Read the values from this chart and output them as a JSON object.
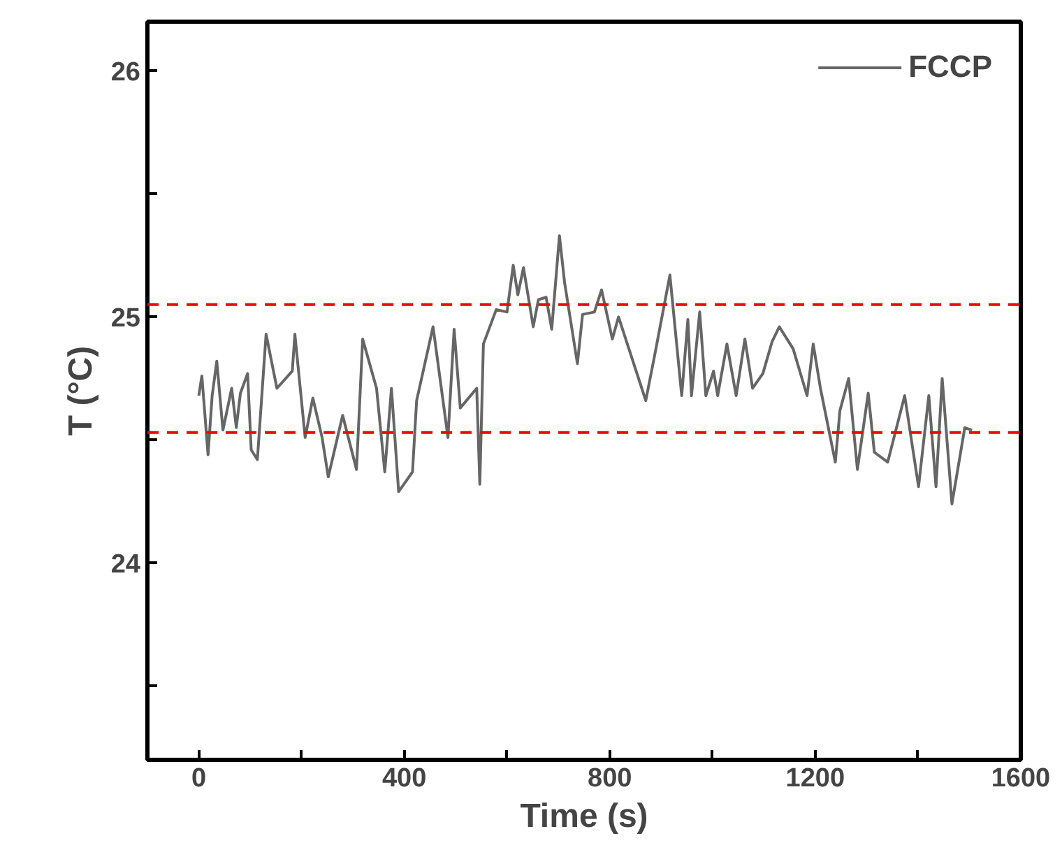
{
  "chart_data": {
    "type": "line",
    "xlabel": "Time (s)",
    "ylabel": "T (°C)",
    "xlim": [
      -100,
      1600
    ],
    "ylim": [
      23.2,
      26.2
    ],
    "xticks": [
      0,
      {
        "value": 200,
        "label": null
      },
      400,
      {
        "value": 600,
        "label": null
      },
      800,
      {
        "value": 1000,
        "label": null
      },
      1200,
      {
        "value": 1400,
        "label": null
      },
      1600
    ],
    "yticks": [
      {
        "value": 23.5,
        "label": null
      },
      24,
      {
        "value": 24.5,
        "label": null
      },
      25,
      {
        "value": 25.5,
        "label": null
      },
      26
    ],
    "grid": false,
    "legend": "top right",
    "ref_lines": [
      {
        "axis": "y",
        "value": 25.05,
        "color": "#ff0000",
        "line_style": "dashed"
      },
      {
        "axis": "y",
        "value": 24.53,
        "color": "#ff0000",
        "line_style": "dashed"
      }
    ],
    "series": [
      {
        "name": "FCCP",
        "color": "#666666",
        "x": [
          0,
          6,
          18,
          26,
          35,
          47,
          64,
          73,
          81,
          95,
          102,
          114,
          131,
          152,
          182,
          187,
          207,
          222,
          240,
          252,
          280,
          307,
          319,
          346,
          362,
          375,
          389,
          416,
          424,
          456,
          485,
          497,
          509,
          541,
          547,
          554,
          579,
          600,
          612,
          621,
          632,
          651,
          661,
          676,
          687,
          702,
          712,
          737,
          747,
          770,
          784,
          805,
          817,
          856,
          870,
          887,
          917,
          940,
          952,
          959,
          975,
          987,
          1002,
          1010,
          1028,
          1046,
          1063,
          1078,
          1098,
          1116,
          1130,
          1157,
          1184,
          1196,
          1210,
          1239,
          1248,
          1265,
          1282,
          1303,
          1315,
          1341,
          1374,
          1401,
          1421,
          1435,
          1447,
          1466,
          1491,
          1505
        ],
        "values": [
          24.68,
          24.76,
          24.44,
          24.68,
          24.82,
          24.54,
          24.71,
          24.55,
          24.69,
          24.77,
          24.46,
          24.42,
          24.93,
          24.71,
          24.78,
          24.93,
          24.51,
          24.67,
          24.51,
          24.35,
          24.6,
          24.38,
          24.91,
          24.71,
          24.37,
          24.71,
          24.29,
          24.37,
          24.66,
          24.96,
          24.51,
          24.95,
          24.63,
          24.71,
          24.32,
          24.89,
          25.03,
          25.02,
          25.21,
          25.09,
          25.2,
          24.96,
          25.07,
          25.08,
          24.95,
          25.33,
          25.14,
          24.81,
          25.01,
          25.02,
          25.11,
          24.91,
          25.0,
          24.75,
          24.66,
          24.84,
          25.17,
          24.68,
          24.99,
          24.68,
          25.02,
          24.68,
          24.78,
          24.68,
          24.89,
          24.68,
          24.91,
          24.71,
          24.77,
          24.9,
          24.96,
          24.87,
          24.68,
          24.89,
          24.71,
          24.41,
          24.62,
          24.75,
          24.38,
          24.69,
          24.45,
          24.41,
          24.68,
          24.31,
          24.68,
          24.31,
          24.75,
          24.24,
          24.55,
          24.54
        ]
      }
    ]
  }
}
